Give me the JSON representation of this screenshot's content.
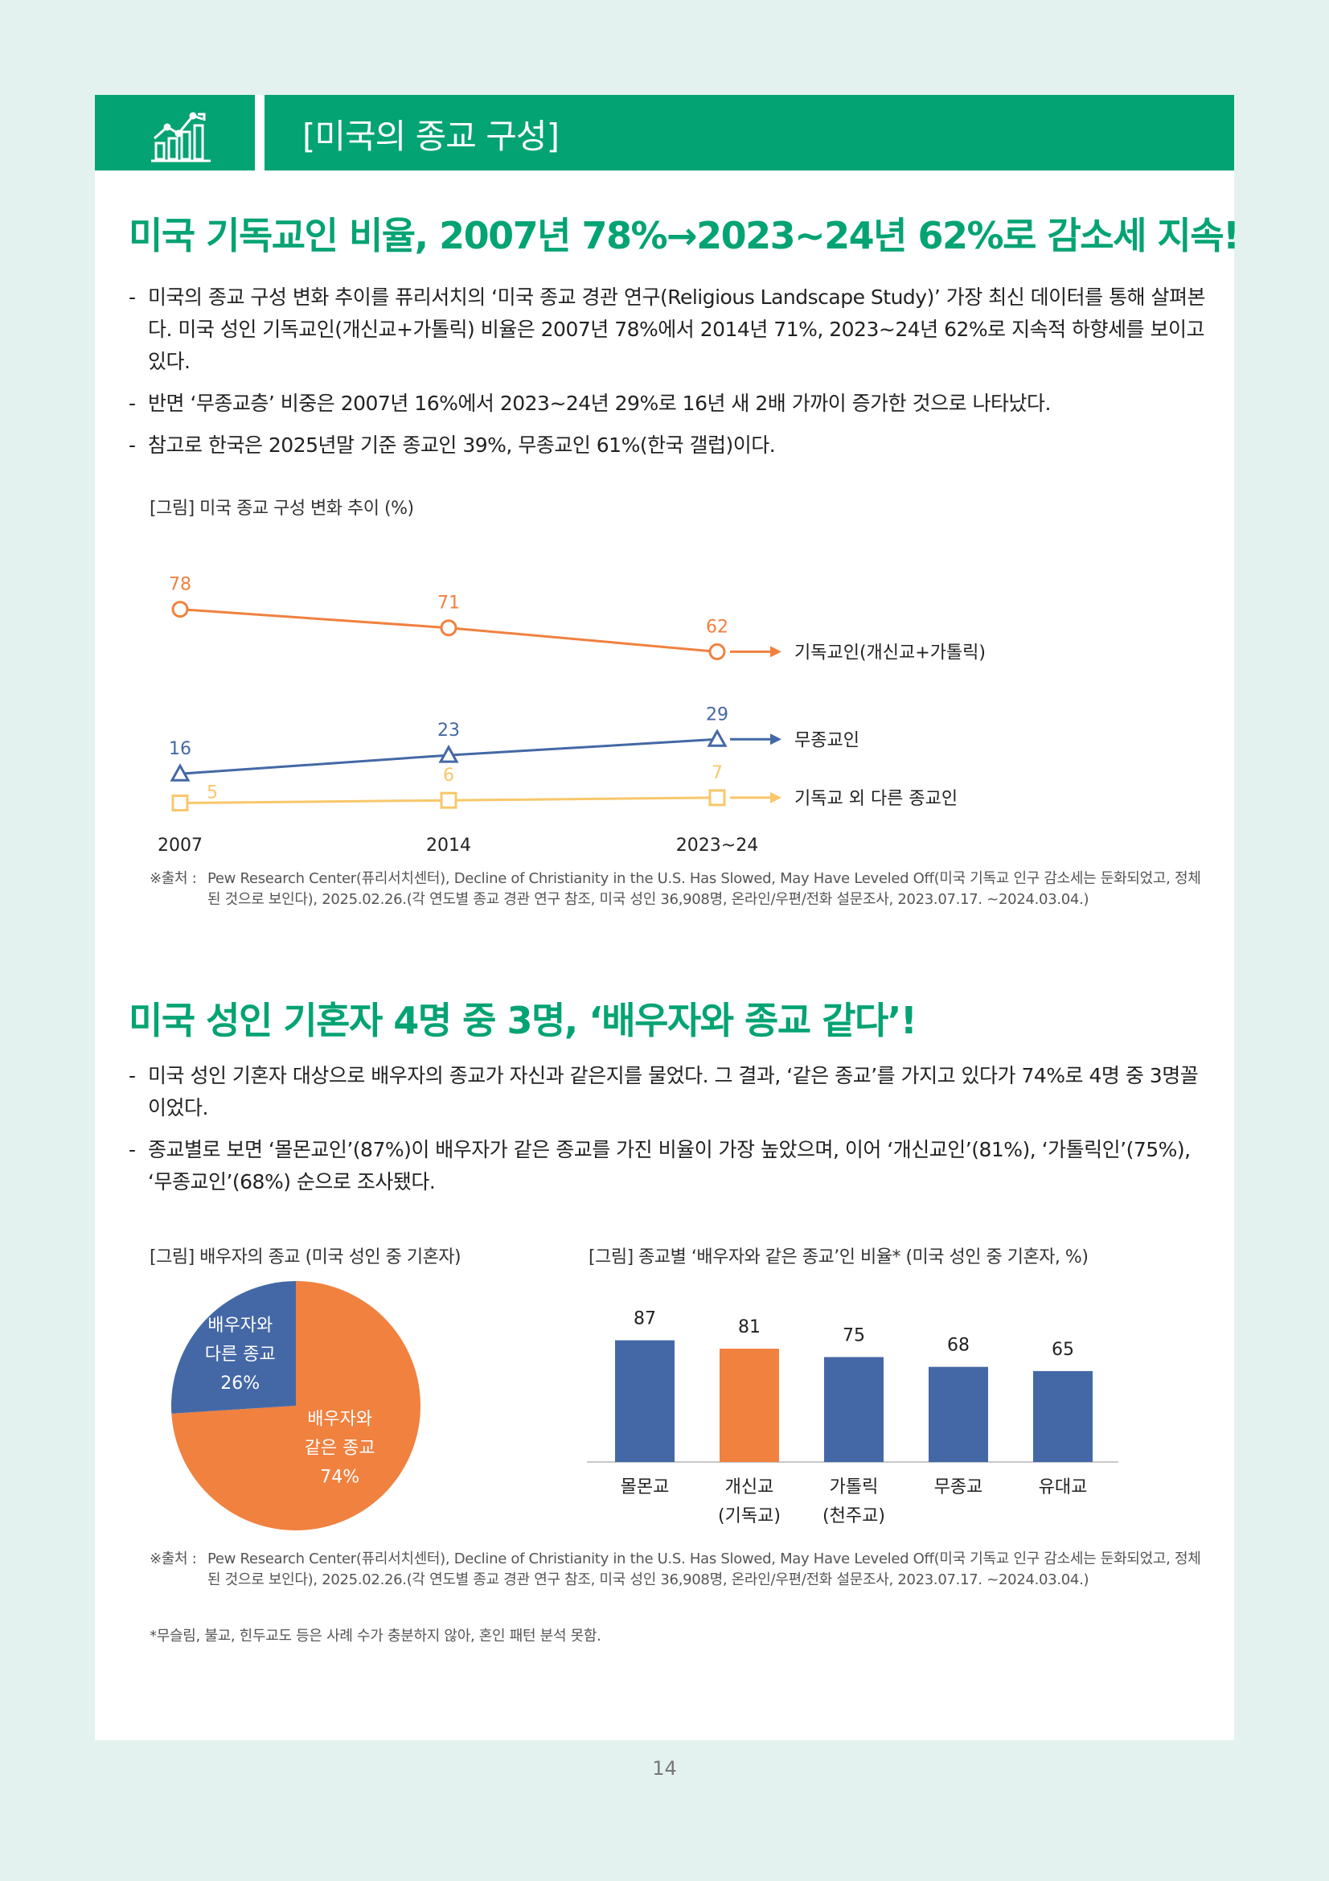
{
  "header": {
    "title": "[미국의 종교 구성]"
  },
  "section1": {
    "title": "미국 기독교인 비율, 2007년 78%→2023~24년 62%로 감소세 지속!",
    "bullets": [
      "미국의 종교 구성 변화 추이를 퓨리서치의 ‘미국 종교 경관 연구(Religious Landscape Study)’ 가장 최신 데이터를 통해 살펴본다. 미국 성인 기독교인(개신교+가톨릭) 비율은 2007년 78%에서 2014년 71%, 2023~24년 62%로 지속적 하향세를 보이고 있다.",
      "반면 ‘무종교층’ 비중은 2007년 16%에서 2023~24년 29%로 16년 새 2배 가까이 증가한 것으로 나타났다.",
      "참고로 한국은 2025년말 기준 종교인 39%, 무종교인 61%(한국 갤럽)이다."
    ],
    "figure_caption": "[그림] 미국 종교 구성 변화 추이 (%)",
    "source_label": "※출처 :",
    "source_text": "Pew Research Center(퓨리서치센터), Decline of Christianity in the U.S. Has Slowed, May Have Leveled Off(미국 기독교 인구 감소세는 둔화되었고, 정체된 것으로 보인다), 2025.02.26.(각 연도별 종교 경관 연구 참조, 미국 성인 36,908명, 온라인/우편/전화 설문조사, 2023.07.17. ~2024.03.04.)"
  },
  "section2": {
    "title": "미국 성인 기혼자 4명 중 3명, ‘배우자와 종교 같다’!",
    "bullets": [
      "미국 성인 기혼자 대상으로 배우자의 종교가 자신과 같은지를 물었다. 그 결과, ‘같은 종교’를 가지고 있다가 74%로 4명 중 3명꼴이었다.",
      "종교별로 보면 ‘몰몬교인’(87%)이 배우자가 같은 종교를 가진 비율이 가장 높았으며, 이어 ‘개신교인’(81%), ‘가톨릭인’(75%), ‘무종교인’(68%) 순으로 조사됐다."
    ],
    "pie_caption": "[그림] 배우자의 종교 (미국 성인 중 기혼자)",
    "bar_caption": "[그림] 종교별 ‘배우자와 같은 종교’인 비율* (미국 성인 중 기혼자, %)",
    "source_label": "※출처 :",
    "source_text": "Pew Research Center(퓨리서치센터), Decline of Christianity in the U.S. Has Slowed, May Have Leveled Off(미국 기독교 인구 감소세는 둔화되었고, 정체된 것으로 보인다), 2025.02.26.(각 연도별 종교 경관 연구 참조, 미국 성인 36,908명, 온라인/우편/전화 설문조사, 2023.07.17. ~2024.03.04.)",
    "note": "*무슬림, 불교, 힌두교도 등은 사례 수가 충분하지 않아, 혼인 패턴 분석 못함."
  },
  "page_number": "14",
  "colors": {
    "green": "#04a373",
    "orange": "#f0813f",
    "blue": "#4468a6",
    "yellow": "#f8c76b",
    "page_bg": "#e3f2ee"
  },
  "chart_data": [
    {
      "type": "line",
      "categories": [
        "2007",
        "2014",
        "2023~24"
      ],
      "series": [
        {
          "name": "기독교인(개신교+가톨릭)",
          "values": [
            78,
            71,
            62
          ],
          "color": "#f0813f",
          "marker": "circle"
        },
        {
          "name": "무종교인",
          "values": [
            16,
            23,
            29
          ],
          "color": "#4468a6",
          "marker": "triangle"
        },
        {
          "name": "기독교 외 다른 종교인",
          "values": [
            5,
            6,
            7
          ],
          "color": "#f8c76b",
          "marker": "square"
        }
      ],
      "grid": false,
      "legend": "right"
    },
    {
      "type": "pie",
      "slices": [
        {
          "label": [
            "배우자와",
            "같은 종교",
            "74%"
          ],
          "value": 74,
          "color": "#f0813f"
        },
        {
          "label": [
            "배우자와",
            "다른 종교",
            "26%"
          ],
          "value": 26,
          "color": "#4468a6"
        }
      ]
    },
    {
      "type": "bar",
      "categories": [
        [
          "몰몬교"
        ],
        [
          "개신교",
          "(기독교)"
        ],
        [
          "가톨릭",
          "(천주교)"
        ],
        [
          "무종교"
        ],
        [
          "유대교"
        ]
      ],
      "values": [
        87,
        81,
        75,
        68,
        65
      ],
      "colors": [
        "#4468a6",
        "#f0813f",
        "#4468a6",
        "#4468a6",
        "#4468a6"
      ],
      "ylim": [
        0,
        100
      ]
    }
  ]
}
